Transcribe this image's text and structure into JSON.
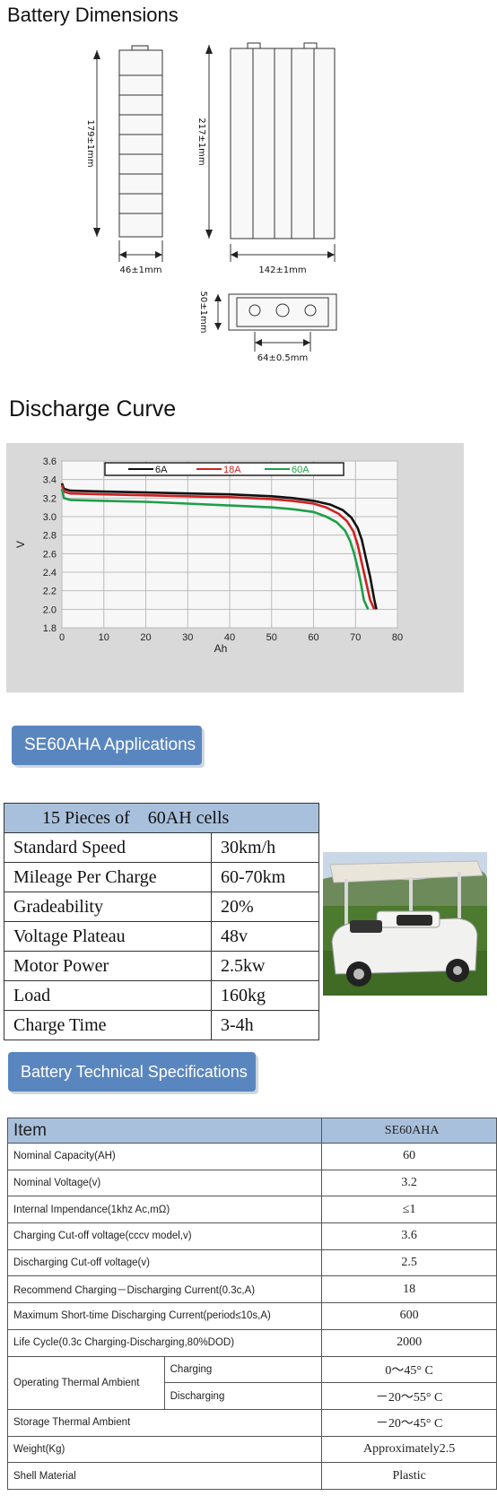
{
  "dimensions": {
    "title": "Battery Dimensions",
    "height_side": "179±1mm",
    "width_side": "46±1mm",
    "height_front": "217±1mm",
    "width_front": "142±1mm",
    "top_depth": "50±1mm",
    "terminal_spacing": "64±0.5mm"
  },
  "discharge": {
    "title": "Discharge Curve"
  },
  "chart_data": {
    "type": "line",
    "xlabel": "Ah",
    "ylabel": "V",
    "xlim": [
      0,
      80
    ],
    "ylim": [
      1.8,
      3.6
    ],
    "x_ticks": [
      "0",
      "10",
      "20",
      "30",
      "40",
      "50",
      "60",
      "70",
      "80"
    ],
    "y_ticks": [
      "3.6",
      "3.4",
      "3.2",
      "3.0",
      "2.8",
      "2.6",
      "2.4",
      "2.2",
      "2.0",
      "1.8"
    ],
    "grid": true,
    "legend_position": "top",
    "series": [
      {
        "name": "6A",
        "color": "#111111",
        "x": [
          0,
          0.5,
          2,
          10,
          20,
          30,
          40,
          50,
          55,
          60,
          64,
          67,
          69,
          70.5,
          71.5,
          72.5,
          73.5,
          74.5,
          75
        ],
        "y": [
          3.36,
          3.3,
          3.28,
          3.27,
          3.26,
          3.25,
          3.24,
          3.22,
          3.2,
          3.17,
          3.13,
          3.07,
          2.99,
          2.88,
          2.75,
          2.55,
          2.35,
          2.1,
          2.0
        ]
      },
      {
        "name": "18A",
        "color": "#cc2222",
        "x": [
          0,
          0.5,
          2,
          10,
          20,
          30,
          40,
          50,
          55,
          60,
          63,
          66,
          68,
          69.5,
          70.5,
          71.5,
          72.5,
          73.5,
          74.5
        ],
        "y": [
          3.34,
          3.27,
          3.25,
          3.24,
          3.23,
          3.22,
          3.21,
          3.19,
          3.17,
          3.14,
          3.1,
          3.03,
          2.95,
          2.84,
          2.7,
          2.5,
          2.3,
          2.1,
          2.0
        ]
      },
      {
        "name": "60A",
        "color": "#1f9e4a",
        "x": [
          0,
          0.5,
          2,
          10,
          20,
          30,
          40,
          50,
          55,
          60,
          63,
          65.5,
          67.5,
          68.7,
          69.7,
          70.5,
          71.2,
          72,
          73
        ],
        "y": [
          3.3,
          3.2,
          3.18,
          3.17,
          3.16,
          3.14,
          3.12,
          3.1,
          3.08,
          3.05,
          3.0,
          2.94,
          2.85,
          2.74,
          2.6,
          2.45,
          2.3,
          2.1,
          2.0
        ]
      }
    ]
  },
  "applications": {
    "button_label": "SE60AHA  Applications",
    "table_header": "15 Pieces of    60AH cells",
    "rows": [
      [
        "Standard Speed",
        "30km/h"
      ],
      [
        "Mileage Per Charge",
        "60-70km"
      ],
      [
        "Gradeability",
        "20%"
      ],
      [
        "Voltage Plateau",
        "48v"
      ],
      [
        "Motor Power",
        "2.5kw"
      ],
      [
        "Load",
        "160kg"
      ],
      [
        "Charge  Time",
        "3-4h"
      ]
    ]
  },
  "specifications": {
    "button_label": "Battery Technical Specifications",
    "header_item": "Item",
    "header_model": "SE60AHA",
    "rows": [
      [
        "Nominal Capacity(AH)",
        "60"
      ],
      [
        "Nominal Voltage(v)",
        "3.2"
      ],
      [
        "Internal Impendance(1khz Ac,mΩ)",
        "≤1"
      ],
      [
        "Charging Cut-off voltage(cccv model,v)",
        "3.6"
      ],
      [
        "Discharging Cut-off voltage(v)",
        "2.5"
      ],
      [
        "Recommend Charging－Discharging Current(0.3c,A)",
        "18"
      ],
      [
        "Maximum Short-time Discharging Current(period≤10s,A)",
        "600"
      ],
      [
        "Life Cycle(0.3c Charging-Discharging,80%DOD)",
        "2000"
      ]
    ],
    "thermal": {
      "label": "Operating Thermal Ambient",
      "charging_label": "Charging",
      "charging_value": "0～45° C",
      "discharging_label": "Discharging",
      "discharging_value": "－20～55° C"
    },
    "rows_after": [
      [
        "Storage Thermal Ambient",
        "－20～45° C"
      ],
      [
        "Weight(Kg)",
        "Approximately2.5"
      ],
      [
        "Shell Material",
        "Plastic"
      ]
    ]
  }
}
